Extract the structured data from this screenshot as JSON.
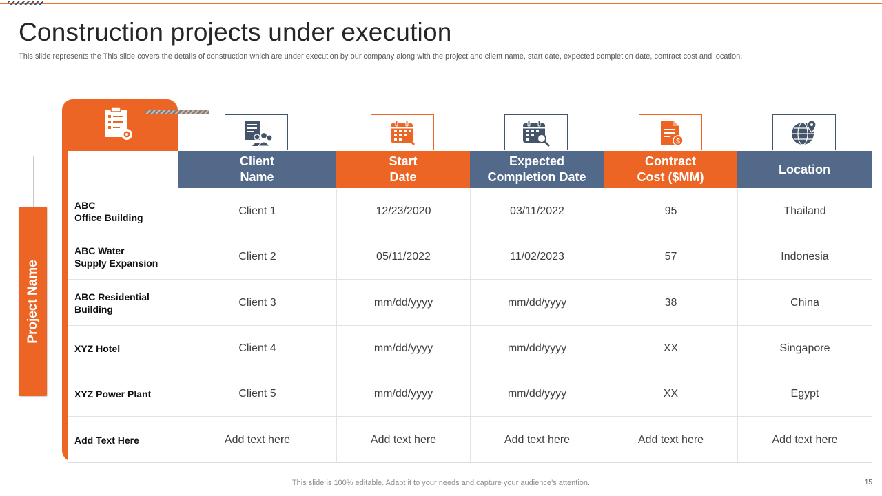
{
  "slide": {
    "title": "Construction projects under execution",
    "subtitle": "This slide represents the This slide covers the details of construction which are under execution by our company along with the project and client name, start date, expected completion date, contract cost and location.",
    "row_header_label": "Project Name",
    "footer": "This slide is 100% editable. Adapt it to your needs and capture your audience’s attention.",
    "page_number": "15"
  },
  "colors": {
    "accent_orange": "#ec6524",
    "header_blue": "#53698a",
    "icon_blue": "#44546a"
  },
  "columns": [
    {
      "line1": "Client",
      "line2": "Name",
      "style": "blue",
      "icon": "client-group-icon"
    },
    {
      "line1": "Start",
      "line2": "Date",
      "style": "orange",
      "icon": "calendar-icon"
    },
    {
      "line1": "Expected",
      "line2": "Completion Date",
      "style": "blue",
      "icon": "calendar-search-icon"
    },
    {
      "line1": "Contract",
      "line2": "Cost ($MM)",
      "style": "orange",
      "icon": "contract-dollar-icon"
    },
    {
      "line1": "Location",
      "line2": "",
      "style": "blue",
      "icon": "globe-location-icon"
    }
  ],
  "rows": [
    {
      "project_line1": "ABC",
      "project_line2": "Office Building",
      "cells": [
        "Client 1",
        "12/23/2020",
        "03/11/2022",
        "95",
        "Thailand"
      ]
    },
    {
      "project_line1": "ABC Water",
      "project_line2": "Supply Expansion",
      "cells": [
        "Client 2",
        "05/11/2022",
        "11/02/2023",
        "57",
        "Indonesia"
      ]
    },
    {
      "project_line1": "ABC Residential",
      "project_line2": "Building",
      "cells": [
        "Client 3",
        "mm/dd/yyyy",
        "mm/dd/yyyy",
        "38",
        "China"
      ]
    },
    {
      "project_line1": "XYZ Hotel",
      "project_line2": "",
      "cells": [
        "Client 4",
        "mm/dd/yyyy",
        "mm/dd/yyyy",
        "XX",
        "Singapore"
      ]
    },
    {
      "project_line1": "XYZ Power Plant",
      "project_line2": "",
      "cells": [
        "Client 5",
        "mm/dd/yyyy",
        "mm/dd/yyyy",
        "XX",
        "Egypt"
      ]
    },
    {
      "project_line1": "Add  Text Here",
      "project_line2": "",
      "cells": [
        "Add text here",
        "Add text here",
        "Add text here",
        "Add text here",
        "Add text here"
      ]
    }
  ]
}
